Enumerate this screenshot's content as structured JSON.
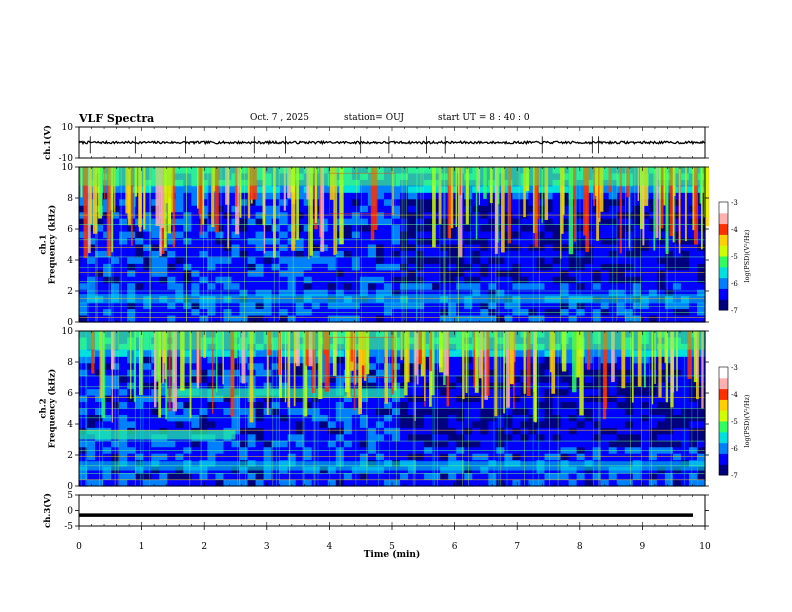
{
  "header": {
    "title": "VLF Spectra",
    "date": "Oct. 7 , 2025",
    "station": "station= OUJ",
    "start_ut": "start  UT =  8 : 40 : 0"
  },
  "chart_data": [
    {
      "type": "line",
      "name": "ch1-waveform",
      "ylabel": "ch.1(V)",
      "ylim": [
        -10,
        10
      ],
      "yticks": [
        "10",
        "-10"
      ],
      "xlim": [
        0,
        10
      ],
      "baseline": 0,
      "spike_times": [
        0.18,
        0.9,
        1.7,
        2.8,
        3.3,
        4.5,
        4.95,
        5.55,
        5.85,
        7.4,
        8.2,
        8.3
      ]
    },
    {
      "type": "heatmap",
      "name": "ch1-spectrogram",
      "ylabel": "ch.1\nFrequency  (kHz)",
      "ylim": [
        0,
        10
      ],
      "yticks": [
        "0",
        "2",
        "4",
        "6",
        "8",
        "10"
      ],
      "xlim": [
        0,
        10
      ],
      "colorbar": {
        "label": "log(PSD)(V²/Hz)",
        "range": [
          -7,
          -3
        ],
        "ticks": [
          "-3",
          "-4",
          "-5",
          "-6",
          "-7"
        ]
      },
      "bands_khz": [
        0.3,
        0.6,
        1.0,
        1.5,
        2.0,
        2.6,
        3.2,
        3.5,
        4.2,
        4.8,
        5.3,
        6.3,
        6.9
      ],
      "bright_band_khz": [
        1.2,
        1.8
      ],
      "seed": 11
    },
    {
      "type": "heatmap",
      "name": "ch2-spectrogram",
      "ylabel": "ch.2\nFrequency  (kHz)",
      "ylim": [
        0,
        10
      ],
      "yticks": [
        "0",
        "2",
        "4",
        "6",
        "8",
        "10"
      ],
      "xlim": [
        0,
        10
      ],
      "colorbar": {
        "label": "log(PSD)(V²/Hz)",
        "range": [
          -7,
          -3
        ],
        "ticks": [
          "-3",
          "-4",
          "-5",
          "-6",
          "-7"
        ]
      },
      "bands_khz": [
        0.4,
        0.8,
        1.3,
        1.9,
        2.3,
        2.9,
        3.6,
        4.4,
        5.0,
        5.7,
        6.4,
        7.1
      ],
      "bright_band_khz": [
        1.0,
        1.6
      ],
      "features": [
        {
          "t0": 0.0,
          "t1": 2.5,
          "f0": 3.0,
          "f1": 3.6
        },
        {
          "t0": 1.4,
          "t1": 5.2,
          "f0": 5.7,
          "f1": 6.3
        }
      ],
      "seed": 29
    },
    {
      "type": "line",
      "name": "ch3-waveform",
      "ylabel": "ch.3(V)",
      "ylim": [
        -5,
        5
      ],
      "yticks": [
        "5",
        "0",
        "-5"
      ],
      "xlim": [
        0,
        10
      ],
      "baseline": 0
    }
  ],
  "xaxis": {
    "label": "Time  (min)",
    "ticks": [
      "0",
      "1",
      "2",
      "3",
      "4",
      "5",
      "6",
      "7",
      "8",
      "9",
      "10"
    ]
  },
  "colors": {
    "colormap": [
      "#00007f",
      "#0000ff",
      "#0080ff",
      "#00e0e0",
      "#30ff60",
      "#d0ff00",
      "#ffd000",
      "#ff3000",
      "#ffb0b0",
      "#ffffff"
    ],
    "trace": "#000000"
  }
}
